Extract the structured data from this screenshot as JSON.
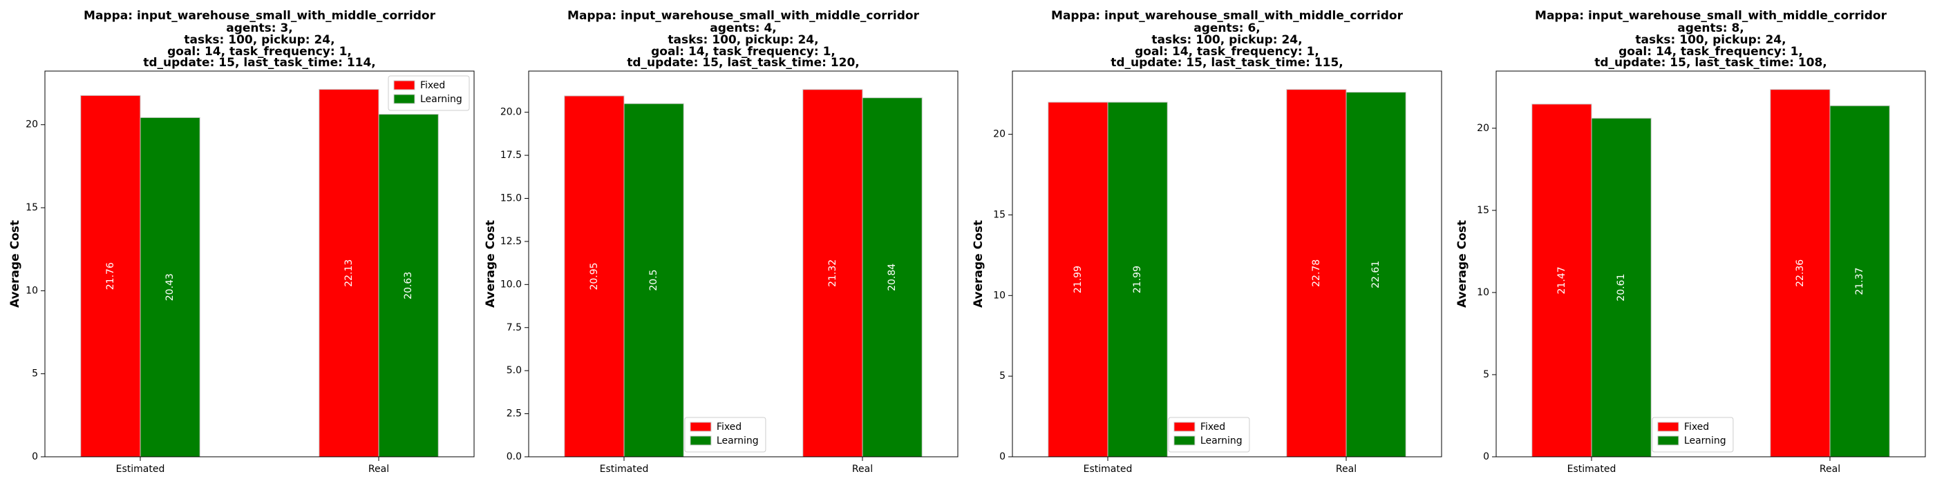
{
  "chart_data": [
    {
      "type": "bar",
      "title_lines": [
        "Mappa: input_warehouse_small_with_middle_corridor",
        "agents: 3,",
        "tasks: 100, pickup: 24,",
        "goal: 14, task_frequency: 1,",
        "td_update: 15, last_task_time: 114,"
      ],
      "xlabel": "",
      "ylabel": "Average Cost",
      "categories": [
        "Estimated",
        "Real"
      ],
      "series": [
        {
          "name": "Fixed",
          "color": "#ff0000",
          "values": [
            21.76,
            22.13
          ],
          "labels": [
            "21.76",
            "22.13"
          ]
        },
        {
          "name": "Learning",
          "color": "#008000",
          "values": [
            20.43,
            20.63
          ],
          "labels": [
            "20.43",
            "20.63"
          ]
        }
      ],
      "ylim": [
        0,
        23.23
      ],
      "yticks": [
        0,
        5,
        10,
        15,
        20
      ],
      "ytick_labels": [
        "0",
        "5",
        "10",
        "15",
        "20"
      ],
      "legend_position": "top-right",
      "grid": false
    },
    {
      "type": "bar",
      "title_lines": [
        "Mappa: input_warehouse_small_with_middle_corridor",
        "agents: 4,",
        "tasks: 100, pickup: 24,",
        "goal: 14, task_frequency: 1,",
        "td_update: 15, last_task_time: 120,"
      ],
      "xlabel": "",
      "ylabel": "Average Cost",
      "categories": [
        "Estimated",
        "Real"
      ],
      "series": [
        {
          "name": "Fixed",
          "color": "#ff0000",
          "values": [
            20.95,
            21.32
          ],
          "labels": [
            "20.95",
            "21.32"
          ]
        },
        {
          "name": "Learning",
          "color": "#008000",
          "values": [
            20.5,
            20.84
          ],
          "labels": [
            "20.5",
            "20.84"
          ]
        }
      ],
      "ylim": [
        0,
        22.39
      ],
      "yticks": [
        0,
        2.5,
        5,
        7.5,
        10,
        12.5,
        15,
        17.5,
        20
      ],
      "ytick_labels": [
        "0.0",
        "2.5",
        "5.0",
        "7.5",
        "10.0",
        "12.5",
        "15.0",
        "17.5",
        "20.0"
      ],
      "legend_position": "bottom-center",
      "grid": false
    },
    {
      "type": "bar",
      "title_lines": [
        "Mappa: input_warehouse_small_with_middle_corridor",
        "agents: 6,",
        "tasks: 100, pickup: 24,",
        "goal: 14, task_frequency: 1,",
        "td_update: 15, last_task_time: 115,"
      ],
      "xlabel": "",
      "ylabel": "Average Cost",
      "categories": [
        "Estimated",
        "Real"
      ],
      "series": [
        {
          "name": "Fixed",
          "color": "#ff0000",
          "values": [
            21.99,
            22.78
          ],
          "labels": [
            "21.99",
            "22.78"
          ]
        },
        {
          "name": "Learning",
          "color": "#008000",
          "values": [
            21.99,
            22.61
          ],
          "labels": [
            "21.99",
            "22.61"
          ]
        }
      ],
      "ylim": [
        0,
        23.92
      ],
      "yticks": [
        0,
        5,
        10,
        15,
        20
      ],
      "ytick_labels": [
        "0",
        "5",
        "10",
        "15",
        "20"
      ],
      "legend_position": "bottom-center",
      "grid": false
    },
    {
      "type": "bar",
      "title_lines": [
        "Mappa: input_warehouse_small_with_middle_corridor",
        "agents: 8,",
        "tasks: 100, pickup: 24,",
        "goal: 14, task_frequency: 1,",
        "td_update: 15, last_task_time: 108,"
      ],
      "xlabel": "",
      "ylabel": "Average Cost",
      "categories": [
        "Estimated",
        "Real"
      ],
      "series": [
        {
          "name": "Fixed",
          "color": "#ff0000",
          "values": [
            21.47,
            22.36
          ],
          "labels": [
            "21.47",
            "22.36"
          ]
        },
        {
          "name": "Learning",
          "color": "#008000",
          "values": [
            20.61,
            21.37
          ],
          "labels": [
            "20.61",
            "21.37"
          ]
        }
      ],
      "ylim": [
        0,
        23.48
      ],
      "yticks": [
        0,
        5,
        10,
        15,
        20
      ],
      "ytick_labels": [
        "0",
        "5",
        "10",
        "15",
        "20"
      ],
      "legend_position": "bottom-center",
      "grid": false
    }
  ]
}
